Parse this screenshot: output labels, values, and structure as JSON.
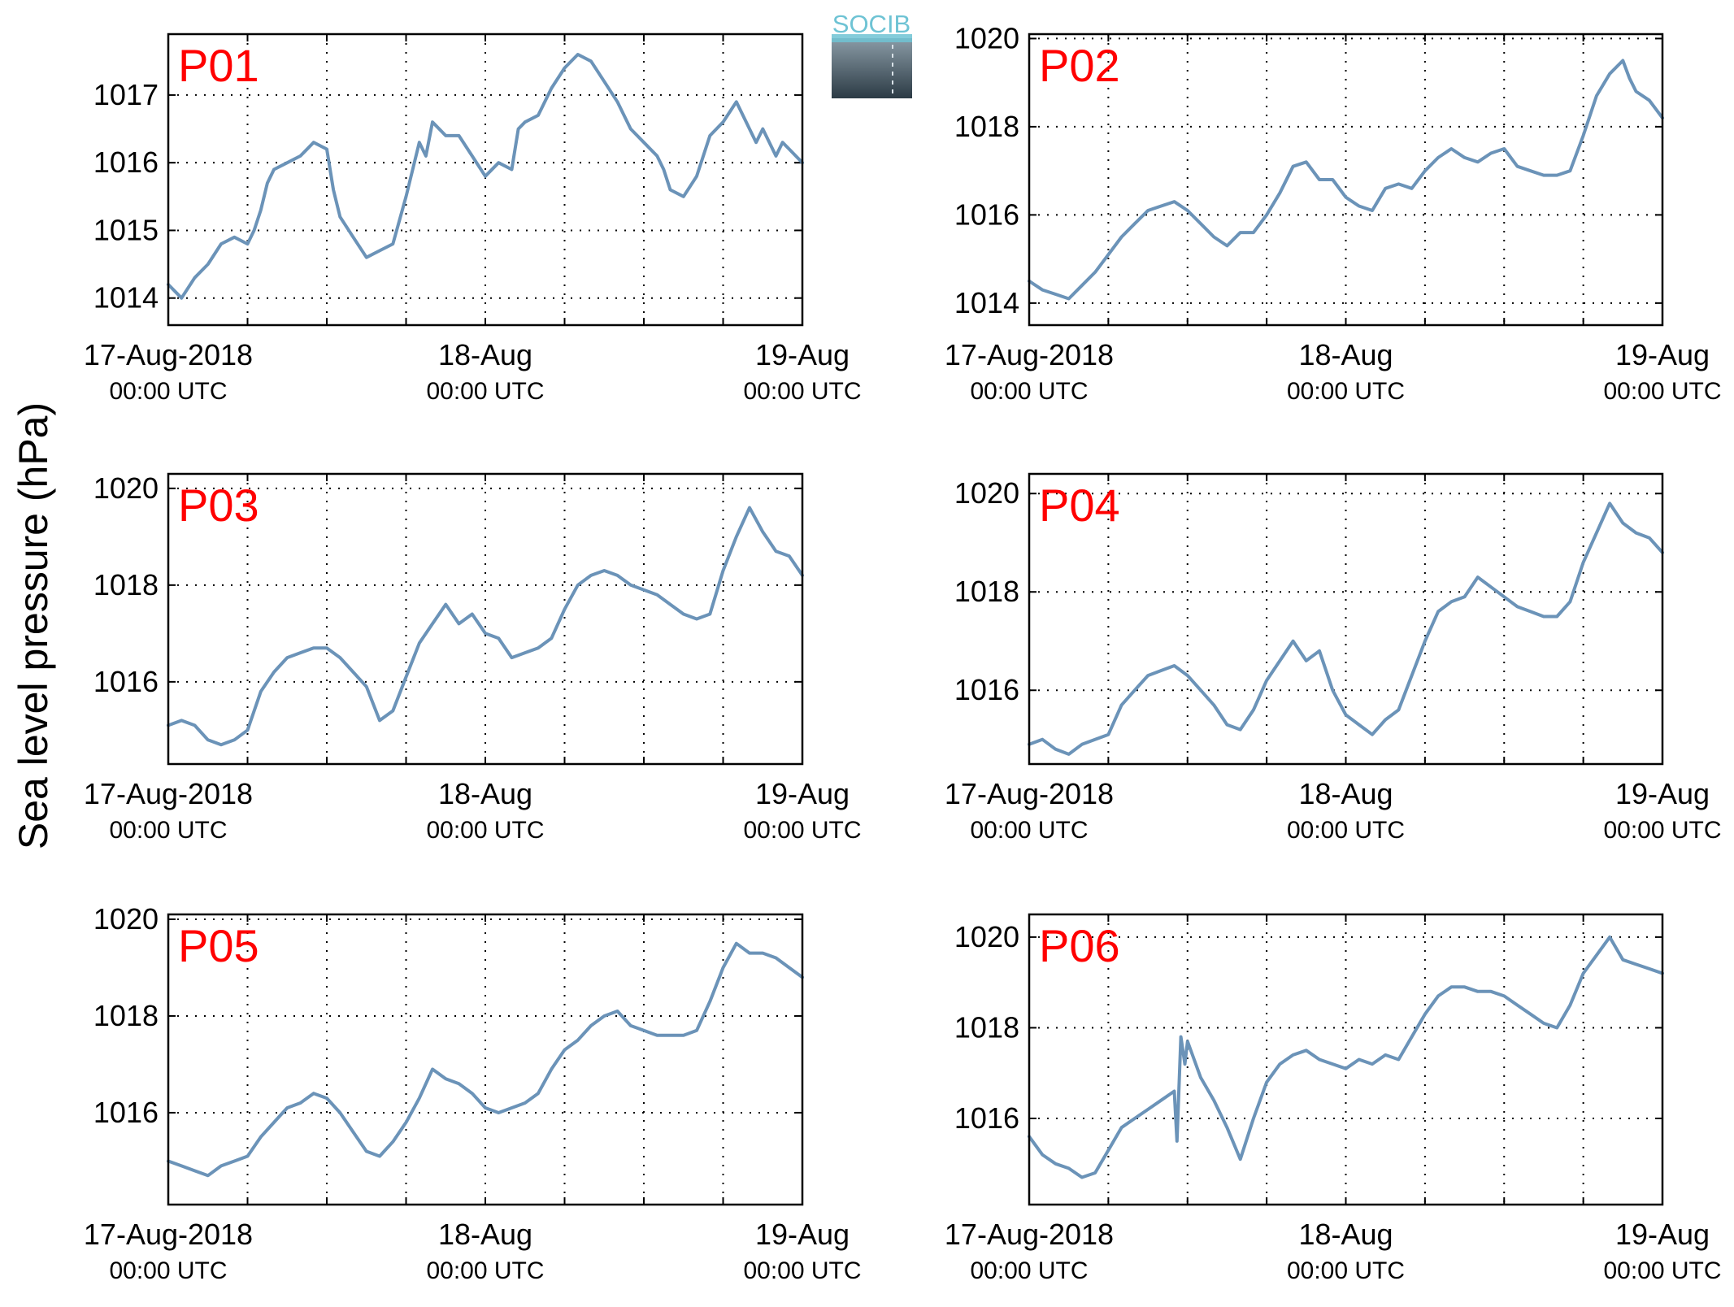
{
  "figure": {
    "ylabel": "Sea level pressure (hPa)",
    "logo_text": "SOCIB",
    "colors": {
      "line": "#6b93b8",
      "panel_label": "#ff0000",
      "axis": "#000000",
      "logo_text": "#6ec3d4",
      "logo_top": "#8a9ba6",
      "logo_bottom": "#2c3b45"
    }
  },
  "chart_data": [
    {
      "type": "line",
      "panel_label": "P01",
      "ylabel": "Sea level pressure (hPa)",
      "ylim": [
        1013.6,
        1017.9
      ],
      "yticks": [
        1014,
        1015,
        1016,
        1017
      ],
      "xlim": [
        0,
        48
      ],
      "xtick_hours": [
        0,
        24,
        48
      ],
      "xtick_labels": [
        "17-Aug-2018",
        "18-Aug",
        "19-Aug"
      ],
      "xtick_sublabels": [
        "00:00 UTC",
        "00:00 UTC",
        "00:00 UTC"
      ],
      "grid": true,
      "series": [
        {
          "x": [
            0,
            1,
            2,
            3,
            4,
            5,
            6,
            6.5,
            7,
            7.5,
            8,
            9,
            10,
            11,
            12,
            12.5,
            13,
            14,
            15,
            16,
            17,
            18,
            19,
            19.5,
            20,
            21,
            22,
            23,
            24,
            25,
            26,
            26.5,
            27,
            28,
            29,
            30,
            31,
            32,
            33,
            34,
            35,
            36,
            37,
            37.5,
            38,
            39,
            40,
            41,
            42,
            43,
            44,
            44.5,
            45,
            46,
            46.5,
            47,
            48
          ],
          "values": [
            1014.2,
            1014.0,
            1014.3,
            1014.5,
            1014.8,
            1014.9,
            1014.8,
            1015.0,
            1015.3,
            1015.7,
            1015.9,
            1016.0,
            1016.1,
            1016.3,
            1016.2,
            1015.6,
            1015.2,
            1014.9,
            1014.6,
            1014.7,
            1014.8,
            1015.5,
            1016.3,
            1016.1,
            1016.6,
            1016.4,
            1016.4,
            1016.1,
            1015.8,
            1016.0,
            1015.9,
            1016.5,
            1016.6,
            1016.7,
            1017.1,
            1017.4,
            1017.6,
            1017.5,
            1017.2,
            1016.9,
            1016.5,
            1016.3,
            1016.1,
            1015.9,
            1015.6,
            1015.5,
            1015.8,
            1016.4,
            1016.6,
            1016.9,
            1016.5,
            1016.3,
            1016.5,
            1016.1,
            1016.3,
            1016.2,
            1016.0
          ],
          "color": "#6b93b8"
        }
      ]
    },
    {
      "type": "line",
      "panel_label": "P02",
      "ylabel": "Sea level pressure (hPa)",
      "ylim": [
        1013.5,
        1020.1
      ],
      "yticks": [
        1014,
        1016,
        1018,
        1020
      ],
      "xlim": [
        0,
        48
      ],
      "xtick_hours": [
        0,
        24,
        48
      ],
      "xtick_labels": [
        "17-Aug-2018",
        "18-Aug",
        "19-Aug"
      ],
      "xtick_sublabels": [
        "00:00 UTC",
        "00:00 UTC",
        "00:00 UTC"
      ],
      "grid": true,
      "series": [
        {
          "x": [
            0,
            1,
            2,
            3,
            4,
            5,
            6,
            7,
            8,
            9,
            10,
            11,
            12,
            13,
            14,
            15,
            16,
            17,
            18,
            19,
            20,
            21,
            22,
            23,
            24,
            25,
            26,
            27,
            28,
            29,
            30,
            31,
            32,
            33,
            34,
            35,
            36,
            37,
            38,
            39,
            40,
            41,
            42,
            43,
            44,
            45,
            45.5,
            46,
            47,
            48
          ],
          "values": [
            1014.5,
            1014.3,
            1014.2,
            1014.1,
            1014.4,
            1014.7,
            1015.1,
            1015.5,
            1015.8,
            1016.1,
            1016.2,
            1016.3,
            1016.1,
            1015.8,
            1015.5,
            1015.3,
            1015.6,
            1015.6,
            1016.0,
            1016.5,
            1017.1,
            1017.2,
            1016.8,
            1016.8,
            1016.4,
            1016.2,
            1016.1,
            1016.6,
            1016.7,
            1016.6,
            1017.0,
            1017.3,
            1017.5,
            1017.3,
            1017.2,
            1017.4,
            1017.5,
            1017.1,
            1017.0,
            1016.9,
            1016.9,
            1017.0,
            1017.8,
            1018.7,
            1019.2,
            1019.5,
            1019.1,
            1018.8,
            1018.6,
            1018.2
          ],
          "color": "#6b93b8"
        }
      ]
    },
    {
      "type": "line",
      "panel_label": "P03",
      "ylabel": "Sea level pressure (hPa)",
      "ylim": [
        1014.3,
        1020.3
      ],
      "yticks": [
        1016,
        1018,
        1020
      ],
      "xlim": [
        0,
        48
      ],
      "xtick_hours": [
        0,
        24,
        48
      ],
      "xtick_labels": [
        "17-Aug-2018",
        "18-Aug",
        "19-Aug"
      ],
      "xtick_sublabels": [
        "00:00 UTC",
        "00:00 UTC",
        "00:00 UTC"
      ],
      "grid": true,
      "series": [
        {
          "x": [
            0,
            1,
            2,
            3,
            4,
            5,
            6,
            7,
            8,
            9,
            10,
            11,
            12,
            13,
            14,
            15,
            16,
            17,
            18,
            19,
            20,
            21,
            22,
            23,
            24,
            25,
            26,
            27,
            28,
            29,
            30,
            31,
            32,
            33,
            34,
            35,
            36,
            37,
            38,
            39,
            40,
            41,
            42,
            43,
            44,
            45,
            45.5,
            46,
            47,
            48
          ],
          "values": [
            1015.1,
            1015.2,
            1015.1,
            1014.8,
            1014.7,
            1014.8,
            1015.0,
            1015.8,
            1016.2,
            1016.5,
            1016.6,
            1016.7,
            1016.7,
            1016.5,
            1016.2,
            1015.9,
            1015.2,
            1015.4,
            1016.1,
            1016.8,
            1017.2,
            1017.6,
            1017.2,
            1017.4,
            1017.0,
            1016.9,
            1016.5,
            1016.6,
            1016.7,
            1016.9,
            1017.5,
            1018.0,
            1018.2,
            1018.3,
            1018.2,
            1018.0,
            1017.9,
            1017.8,
            1017.6,
            1017.4,
            1017.3,
            1017.4,
            1018.3,
            1019.0,
            1019.6,
            1019.1,
            1018.9,
            1018.7,
            1018.6,
            1018.2
          ],
          "color": "#6b93b8"
        }
      ]
    },
    {
      "type": "line",
      "panel_label": "P04",
      "ylabel": "Sea level pressure (hPa)",
      "ylim": [
        1014.5,
        1020.4
      ],
      "yticks": [
        1016,
        1018,
        1020
      ],
      "xlim": [
        0,
        48
      ],
      "xtick_hours": [
        0,
        24,
        48
      ],
      "xtick_labels": [
        "17-Aug-2018",
        "18-Aug",
        "19-Aug"
      ],
      "xtick_sublabels": [
        "00:00 UTC",
        "00:00 UTC",
        "00:00 UTC"
      ],
      "grid": true,
      "series": [
        {
          "x": [
            0,
            1,
            2,
            3,
            4,
            5,
            6,
            7,
            8,
            9,
            10,
            11,
            12,
            13,
            14,
            15,
            16,
            17,
            18,
            19,
            20,
            21,
            22,
            23,
            24,
            25,
            26,
            27,
            28,
            29,
            30,
            31,
            32,
            33,
            34,
            35,
            36,
            37,
            38,
            39,
            40,
            41,
            42,
            43,
            44,
            45,
            46,
            47,
            48
          ],
          "values": [
            1014.9,
            1015.0,
            1014.8,
            1014.7,
            1014.9,
            1015.0,
            1015.1,
            1015.7,
            1016.0,
            1016.3,
            1016.4,
            1016.5,
            1016.3,
            1016.0,
            1015.7,
            1015.3,
            1015.2,
            1015.6,
            1016.2,
            1016.6,
            1017.0,
            1016.6,
            1016.8,
            1016.0,
            1015.5,
            1015.3,
            1015.1,
            1015.4,
            1015.6,
            1016.3,
            1017.0,
            1017.6,
            1017.8,
            1017.9,
            1018.3,
            1018.1,
            1017.9,
            1017.7,
            1017.6,
            1017.5,
            1017.5,
            1017.8,
            1018.6,
            1019.2,
            1019.8,
            1019.4,
            1019.2,
            1019.1,
            1018.8
          ],
          "color": "#6b93b8"
        }
      ]
    },
    {
      "type": "line",
      "panel_label": "P05",
      "ylabel": "Sea level pressure (hPa)",
      "ylim": [
        1014.1,
        1020.1
      ],
      "yticks": [
        1016,
        1018,
        1020
      ],
      "xlim": [
        0,
        48
      ],
      "xtick_hours": [
        0,
        24,
        48
      ],
      "xtick_labels": [
        "17-Aug-2018",
        "18-Aug",
        "19-Aug"
      ],
      "xtick_sublabels": [
        "00:00 UTC",
        "00:00 UTC",
        "00:00 UTC"
      ],
      "grid": true,
      "series": [
        {
          "x": [
            0,
            1,
            2,
            3,
            4,
            5,
            6,
            7,
            8,
            9,
            10,
            11,
            12,
            13,
            14,
            15,
            16,
            17,
            18,
            19,
            20,
            21,
            22,
            23,
            24,
            25,
            26,
            27,
            28,
            29,
            30,
            31,
            32,
            33,
            34,
            35,
            36,
            37,
            38,
            39,
            40,
            41,
            42,
            43,
            44,
            45,
            46,
            47,
            48
          ],
          "values": [
            1015.0,
            1014.9,
            1014.8,
            1014.7,
            1014.9,
            1015.0,
            1015.1,
            1015.5,
            1015.8,
            1016.1,
            1016.2,
            1016.4,
            1016.3,
            1016.0,
            1015.6,
            1015.2,
            1015.1,
            1015.4,
            1015.8,
            1016.3,
            1016.9,
            1016.7,
            1016.6,
            1016.4,
            1016.1,
            1016.0,
            1016.1,
            1016.2,
            1016.4,
            1016.9,
            1017.3,
            1017.5,
            1017.8,
            1018.0,
            1018.1,
            1017.8,
            1017.7,
            1017.6,
            1017.6,
            1017.6,
            1017.7,
            1018.3,
            1019.0,
            1019.5,
            1019.3,
            1019.3,
            1019.2,
            1019.0,
            1018.8
          ],
          "color": "#6b93b8"
        }
      ]
    },
    {
      "type": "line",
      "panel_label": "P06",
      "ylabel": "Sea level pressure (hPa)",
      "ylim": [
        1014.1,
        1020.5
      ],
      "yticks": [
        1016,
        1018,
        1020
      ],
      "xlim": [
        0,
        48
      ],
      "xtick_hours": [
        0,
        24,
        48
      ],
      "xtick_labels": [
        "17-Aug-2018",
        "18-Aug",
        "19-Aug"
      ],
      "xtick_sublabels": [
        "00:00 UTC",
        "00:00 UTC",
        "00:00 UTC"
      ],
      "grid": true,
      "series": [
        {
          "x": [
            0,
            1,
            2,
            3,
            4,
            5,
            6,
            7,
            8,
            9,
            10,
            11,
            11.2,
            11.5,
            11.8,
            12,
            12.5,
            13,
            14,
            15,
            16,
            17,
            18,
            19,
            20,
            21,
            22,
            23,
            24,
            25,
            26,
            27,
            28,
            29,
            30,
            31,
            32,
            33,
            34,
            35,
            36,
            37,
            38,
            39,
            40,
            41,
            42,
            43,
            44,
            45,
            46,
            47,
            48
          ],
          "values": [
            1015.6,
            1015.2,
            1015.0,
            1014.9,
            1014.7,
            1014.8,
            1015.3,
            1015.8,
            1016.0,
            1016.2,
            1016.4,
            1016.6,
            1015.5,
            1017.8,
            1017.2,
            1017.7,
            1017.3,
            1016.9,
            1016.4,
            1015.8,
            1015.1,
            1016.0,
            1016.8,
            1017.2,
            1017.4,
            1017.5,
            1017.3,
            1017.2,
            1017.1,
            1017.3,
            1017.2,
            1017.4,
            1017.3,
            1017.8,
            1018.3,
            1018.7,
            1018.9,
            1018.9,
            1018.8,
            1018.8,
            1018.7,
            1018.5,
            1018.3,
            1018.1,
            1018.0,
            1018.5,
            1019.2,
            1019.6,
            1020.0,
            1019.5,
            1019.4,
            1019.3,
            1019.2
          ],
          "color": "#6b93b8"
        }
      ]
    }
  ]
}
